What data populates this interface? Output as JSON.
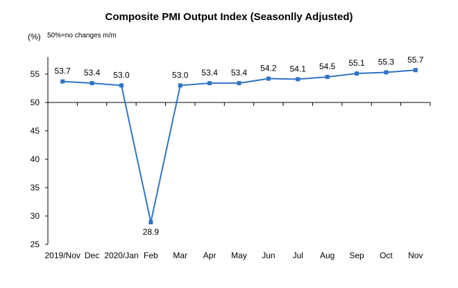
{
  "chart_data": {
    "type": "line",
    "title": "Composite PMI Output Index (Seasonlly Adjusted)",
    "unit": "(%)",
    "note": "50%=no changes  m/m",
    "categories": [
      "2019/Nov",
      "Dec",
      "2020/Jan",
      "Feb",
      "Mar",
      "Apr",
      "May",
      "Jun",
      "Jul",
      "Aug",
      "Sep",
      "Oct",
      "Nov"
    ],
    "values": [
      53.7,
      53.4,
      53.0,
      28.9,
      53.0,
      53.4,
      53.4,
      54.2,
      54.1,
      54.5,
      55.1,
      55.3,
      55.7
    ],
    "data_labels": [
      "53.7",
      "53.4",
      "53.0",
      "28.9",
      "53.0",
      "53.4",
      "53.4",
      "54.2",
      "54.1",
      "54.5",
      "55.1",
      "55.3",
      "55.7"
    ],
    "y_ticks": [
      "25",
      "30",
      "35",
      "40",
      "45",
      "50",
      "55"
    ],
    "ylim": [
      25,
      58
    ],
    "reference_line": 50,
    "colors": {
      "line": "#2f74c5",
      "axis": "#000000"
    }
  }
}
